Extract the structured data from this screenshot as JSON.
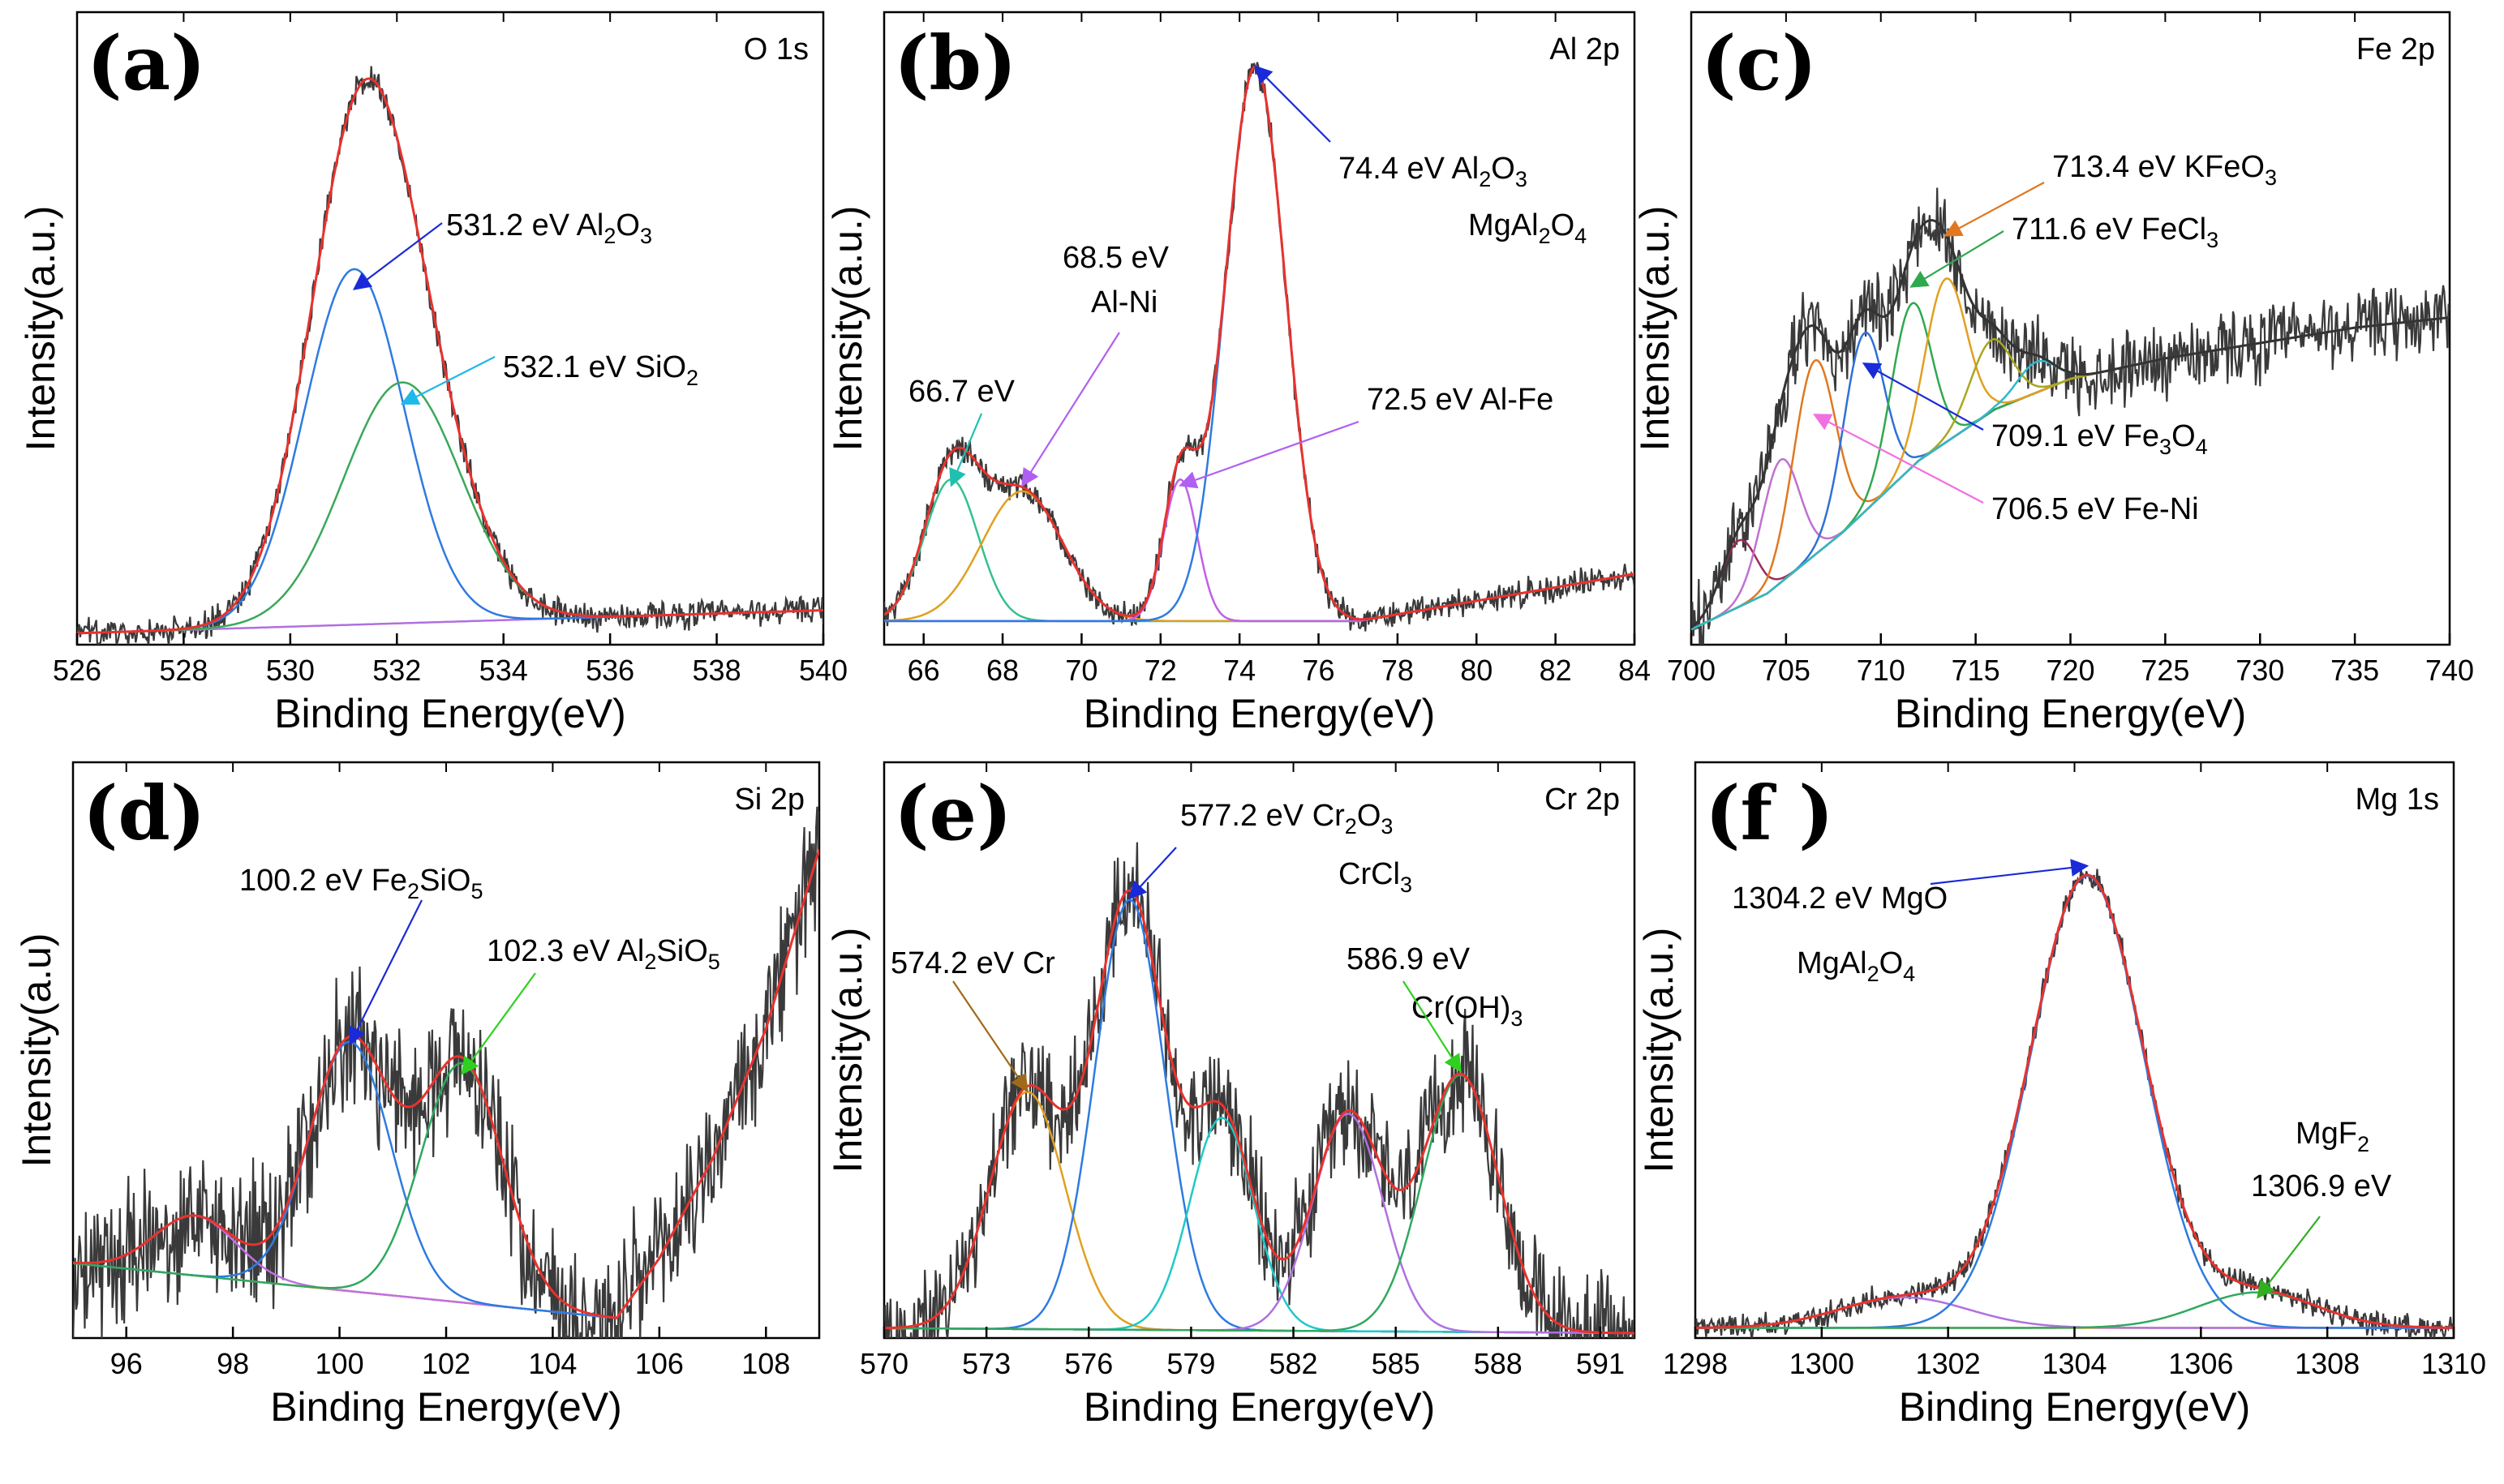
{
  "chart_data": [
    {
      "type": "line",
      "panel_label": "(a)",
      "core_level": "O 1s",
      "xlabel": "Binding Energy(eV)",
      "ylabel": "Intensity(a.u.)",
      "xlim": [
        526,
        540
      ],
      "ylim": [
        0,
        1.0
      ],
      "xticks": [
        "526",
        "528",
        "530",
        "532",
        "534",
        "536",
        "538",
        "540"
      ],
      "baseline": {
        "x": [
          526,
          540
        ],
        "y": [
          0.02,
          0.06
        ],
        "color": "#b070e0"
      },
      "components": [
        {
          "name": "Al2O3",
          "center": 531.2,
          "height": 0.62,
          "fwhm": 2.2,
          "color": "#2e7be0"
        },
        {
          "name": "SiO2",
          "center": 532.1,
          "height": 0.42,
          "fwhm": 2.6,
          "color": "#3aa85a"
        }
      ],
      "envelope_color": "#e8322e",
      "noise": 0.01,
      "annotations": [
        {
          "label": "531.2 eV  Al2O3",
          "peak_x": 531.2,
          "peak_y": 0.62,
          "color": "#1a2ad8"
        },
        {
          "label": "532.1 eV  SiO2",
          "peak_x": 532.1,
          "peak_y": 0.42,
          "color": "#20b8e8"
        }
      ]
    },
    {
      "type": "line",
      "panel_label": "(b)",
      "core_level": "Al 2p",
      "xlabel": "Binding Energy(eV)",
      "ylabel": "Intensity(a.u.)",
      "xlim": [
        65,
        84
      ],
      "ylim": [
        0,
        1.0
      ],
      "xticks": [
        "66",
        "68",
        "70",
        "72",
        "74",
        "76",
        "78",
        "80",
        "82",
        "84"
      ],
      "baseline": {
        "x": [
          65,
          77,
          84
        ],
        "y": [
          0.04,
          0.04,
          0.12
        ],
        "color": "#2ab8c8"
      },
      "components": [
        {
          "name": "66.7 eV",
          "center": 66.7,
          "height": 0.24,
          "fwhm": 1.6,
          "color": "#35c090"
        },
        {
          "name": "Al-Ni",
          "center": 68.5,
          "height": 0.22,
          "fwhm": 2.4,
          "color": "#e0a020"
        },
        {
          "name": "Al-Fe",
          "center": 72.5,
          "height": 0.24,
          "fwhm": 1.0,
          "color": "#c060e8"
        },
        {
          "name": "Al2O3 MgAl2O4",
          "center": 74.4,
          "height": 0.94,
          "fwhm": 1.8,
          "color": "#2e7be0"
        }
      ],
      "envelope_color": "#e8322e",
      "noise": 0.01,
      "annotations": [
        {
          "label": "74.4 eV  Al2O3  MgAl2O4",
          "peak_x": 74.4,
          "peak_y": 0.98,
          "color": "#1a2ad8"
        },
        {
          "label": "68.5 eV  Al-Ni",
          "peak_x": 68.5,
          "peak_y": 0.27,
          "color": "#b060f0"
        },
        {
          "label": "66.7 eV",
          "peak_x": 66.7,
          "peak_y": 0.27,
          "color": "#20c0b0"
        },
        {
          "label": "72.5 eV  Al-Fe",
          "peak_x": 72.5,
          "peak_y": 0.27,
          "color": "#b060f0"
        }
      ]
    },
    {
      "type": "line",
      "panel_label": "(c)",
      "core_level": "Fe 2p",
      "xlabel": "Binding Energy(eV)",
      "ylabel": "Intensity(a.u.)",
      "xlim": [
        700,
        740
      ],
      "ylim": [
        0,
        1.0
      ],
      "xticks": [
        "700",
        "705",
        "710",
        "715",
        "720",
        "725",
        "730",
        "735",
        "740"
      ],
      "baseline": {
        "x": [
          700,
          704,
          708,
          712,
          716,
          720,
          725,
          730,
          735,
          740
        ],
        "y": [
          0.03,
          0.1,
          0.22,
          0.36,
          0.46,
          0.52,
          0.56,
          0.59,
          0.62,
          0.64
        ],
        "color": "#5b8dd0"
      },
      "components": [
        {
          "name": "702.5",
          "center": 702.5,
          "height": 0.13,
          "fwhm": 2.2,
          "color": "#9b2c5a"
        },
        {
          "name": "704.7",
          "center": 704.7,
          "height": 0.24,
          "fwhm": 2.4,
          "color": "#c070d0"
        },
        {
          "name": "Fe-Ni",
          "center": 706.5,
          "height": 0.38,
          "fwhm": 2.6,
          "color": "#e07820"
        },
        {
          "name": "Fe3O4",
          "center": 709.1,
          "height": 0.35,
          "fwhm": 2.5,
          "color": "#3070d8"
        },
        {
          "name": "FeCl3",
          "center": 711.6,
          "height": 0.32,
          "fwhm": 2.5,
          "color": "#30a850"
        },
        {
          "name": "KFeO3",
          "center": 713.4,
          "height": 0.32,
          "fwhm": 2.6,
          "color": "#e0a020"
        },
        {
          "name": "715.8",
          "center": 715.8,
          "height": 0.14,
          "fwhm": 2.6,
          "color": "#a8a820"
        },
        {
          "name": "718.2",
          "center": 718.2,
          "height": 0.06,
          "fwhm": 2.4,
          "color": "#30b8c8"
        }
      ],
      "envelope_color": "#333333",
      "noise": 0.03,
      "annotations": [
        {
          "label": "713.4 eV   KFeO3",
          "peak_x": 713.4,
          "peak_y": 0.8,
          "color": "#e07820"
        },
        {
          "label": "711.6 eV   FeCl3",
          "peak_x": 711.6,
          "peak_y": 0.7,
          "color": "#30a850"
        },
        {
          "label": "709.1 eV   Fe3O4",
          "peak_x": 709.1,
          "peak_y": 0.55,
          "color": "#1a2ad8"
        },
        {
          "label": "706.5 eV   Fe-Ni",
          "peak_x": 706.5,
          "peak_y": 0.45,
          "color": "#f070e0"
        }
      ]
    },
    {
      "type": "line",
      "panel_label": "(d)",
      "core_level": "Si 2p",
      "xlabel": "Binding Energy(eV)",
      "ylabel": "Intensity(a.u)",
      "xlim": [
        95,
        109
      ],
      "ylim": [
        0,
        1.0
      ],
      "xticks": [
        "96",
        "98",
        "100",
        "102",
        "104",
        "106",
        "108"
      ],
      "baseline": {
        "x": [
          95,
          105.2,
          106,
          107,
          108,
          108.5,
          109
        ],
        "y": [
          0.15,
          0.04,
          0.16,
          0.36,
          0.62,
          0.8,
          0.98
        ],
        "color": "#e0a020"
      },
      "components": [
        {
          "name": "97.3",
          "center": 97.3,
          "height": 0.12,
          "fwhm": 1.8,
          "color": "#c070e0"
        },
        {
          "name": "Fe2SiO5",
          "center": 100.2,
          "height": 0.5,
          "fwhm": 1.8,
          "color": "#2e7be0"
        },
        {
          "name": "Al2SiO5",
          "center": 102.3,
          "height": 0.48,
          "fwhm": 1.8,
          "color": "#30a860"
        }
      ],
      "envelope_color": "#e8322e",
      "noise": 0.06,
      "annotations": [
        {
          "label": "100.2 eV  Fe2SiO5",
          "peak_x": 100.2,
          "peak_y": 0.59,
          "color": "#1a2ad8"
        },
        {
          "label": "102.3 eV   Al2SiO5",
          "peak_x": 102.3,
          "peak_y": 0.53,
          "color": "#30d020"
        }
      ]
    },
    {
      "type": "line",
      "panel_label": "(e)",
      "core_level": "Cr 2p",
      "xlabel": "Binding Energy(eV)",
      "ylabel": "Intensity(a.u.)",
      "xlim": [
        570,
        592
      ],
      "ylim": [
        0,
        1.0
      ],
      "xticks": [
        "570",
        "573",
        "576",
        "579",
        "582",
        "585",
        "588",
        "591"
      ],
      "baseline": {
        "x": [
          570,
          592
        ],
        "y": [
          0.02,
          0.01
        ],
        "color": "#9b4a4a"
      },
      "components": [
        {
          "name": "Cr",
          "center": 574.2,
          "height": 0.48,
          "fwhm": 2.6,
          "color": "#e0a020"
        },
        {
          "name": "Cr2O3 CrCl3",
          "center": 577.2,
          "height": 0.87,
          "fwhm": 2.4,
          "color": "#2e7be0"
        },
        {
          "name": "579.9",
          "center": 579.9,
          "height": 0.43,
          "fwhm": 2.2,
          "color": "#20c8c8"
        },
        {
          "name": "583.6",
          "center": 583.6,
          "height": 0.44,
          "fwhm": 2.4,
          "color": "#b070e0"
        },
        {
          "name": "Cr(OH)3",
          "center": 586.9,
          "height": 0.52,
          "fwhm": 2.6,
          "color": "#30a860"
        }
      ],
      "envelope_color": "#e8322e",
      "noise": 0.05,
      "annotations": [
        {
          "label": "577.2 eV Cr2O3  CrCl3",
          "peak_x": 577.2,
          "peak_y": 0.89,
          "color": "#1a2ad8"
        },
        {
          "label": "574.2 eV Cr",
          "peak_x": 574.2,
          "peak_y": 0.5,
          "color": "#a06a18"
        },
        {
          "label": "586.9 eV  Cr(OH)3",
          "peak_x": 586.9,
          "peak_y": 0.54,
          "color": "#30d020"
        }
      ]
    },
    {
      "type": "line",
      "panel_label": "(f )",
      "core_level": "Mg 1s",
      "xlabel": "Binding Energy(eV)",
      "ylabel": "Intensity(a.u.)",
      "xlim": [
        1298,
        1310
      ],
      "ylim": [
        0,
        1.0
      ],
      "xticks": [
        "1298",
        "1300",
        "1302",
        "1304",
        "1306",
        "1308",
        "1310"
      ],
      "baseline": {
        "x": [
          1298,
          1310
        ],
        "y": [
          0.02,
          0.02
        ],
        "color": "#e0a020"
      },
      "components": [
        {
          "name": "1301.3",
          "center": 1301.3,
          "height": 0.06,
          "fwhm": 2.4,
          "color": "#b070e0"
        },
        {
          "name": "MgO MgAl2O4",
          "center": 1304.2,
          "height": 0.89,
          "fwhm": 2.1,
          "color": "#2e7be0"
        },
        {
          "name": "MgF2",
          "center": 1306.9,
          "height": 0.07,
          "fwhm": 2.2,
          "color": "#30a860"
        }
      ],
      "envelope_color": "#e8322e",
      "noise": 0.01,
      "annotations": [
        {
          "label": "1304.2 eV  MgO  MgAl2O4",
          "peak_x": 1304.2,
          "peak_y": 0.93,
          "color": "#1a2ad8"
        },
        {
          "label": "MgF2  1306.9 eV",
          "peak_x": 1306.9,
          "peak_y": 0.08,
          "color": "#30b020"
        }
      ]
    }
  ],
  "labels": {
    "a": {
      "letter": "(a)",
      "core": "O 1s",
      "ylabel": "Intensity(a.u.)",
      "xlabel": "Binding Energy(eV)",
      "ann": [
        [
          "531.2 eV  Al",
          "2",
          "O",
          "3"
        ],
        [
          "532.1 eV  SiO",
          "2"
        ]
      ]
    },
    "b": {
      "letter": "(b)",
      "core": "Al 2p",
      "ylabel": "Intensity(a.u.)",
      "xlabel": "Binding Energy(eV)",
      "ann1a": [
        "74.4 eV  Al",
        "2",
        "O",
        "3"
      ],
      "ann1b": [
        "MgAl",
        "2",
        "O",
        "4"
      ],
      "ann2a": "68.5 eV",
      "ann2b": "Al-Ni",
      "ann3": "66.7 eV",
      "ann4": "72.5 eV   Al-Fe"
    },
    "c": {
      "letter": "(c)",
      "core": "Fe 2p",
      "ylabel": "Intensity(a.u.)",
      "xlabel": "Binding Energy(eV)",
      "ann": [
        [
          "713.4 eV   KFeO",
          "3"
        ],
        [
          "711.6 eV   FeCl",
          "3"
        ],
        [
          "709.1 eV   Fe",
          "3",
          "O",
          "4"
        ],
        [
          "706.5 eV   Fe-Ni"
        ]
      ]
    },
    "d": {
      "letter": "(d)",
      "core": "Si 2p",
      "ylabel": "Intensity(a.u)",
      "xlabel": "Binding Energy(eV)",
      "ann": [
        [
          "100.2 eV  Fe",
          "2",
          "SiO",
          "5"
        ],
        [
          "102.3 eV   Al",
          "2",
          "SiO",
          "5"
        ]
      ]
    },
    "e": {
      "letter": "(e)",
      "core": "Cr 2p",
      "ylabel": "Intensity(a.u.)",
      "xlabel": "Binding Energy(eV)",
      "ann1a": [
        "577.2 eV Cr",
        "2",
        "O",
        "3"
      ],
      "ann1b": [
        "CrCl",
        "3"
      ],
      "ann2": "574.2 eV Cr",
      "ann3a": "586.9 eV",
      "ann3b": [
        "Cr(OH)",
        "3"
      ]
    },
    "f": {
      "letter": "(f )",
      "core": "Mg 1s",
      "ylabel": "Intensity(a.u.)",
      "xlabel": "Binding Energy(eV)",
      "ann1a": "1304.2 eV  MgO",
      "ann1b": [
        "MgAl",
        "2",
        "O",
        "4"
      ],
      "ann2a": [
        "MgF",
        "2"
      ],
      "ann2b": "1306.9 eV"
    }
  }
}
